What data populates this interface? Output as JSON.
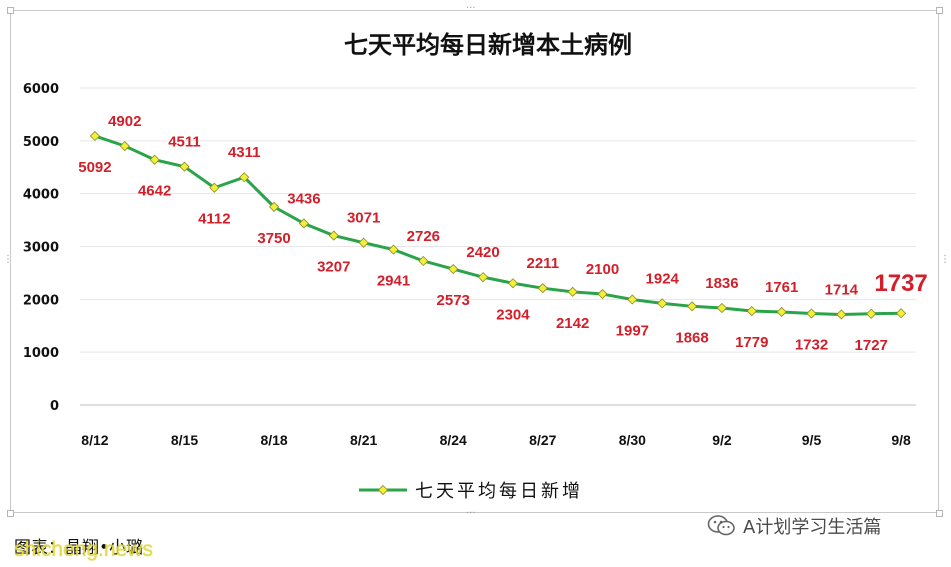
{
  "chart_data": {
    "type": "line",
    "title": "七天平均每日新增本土病例",
    "xlabel": "",
    "ylabel": "",
    "ylim": [
      0,
      6000
    ],
    "yticks": [
      0,
      1000,
      2000,
      3000,
      4000,
      5000,
      6000
    ],
    "grid": true,
    "legend_position": "bottom",
    "x": [
      "8/12",
      "8/13",
      "8/14",
      "8/15",
      "8/16",
      "8/17",
      "8/18",
      "8/19",
      "8/20",
      "8/21",
      "8/22",
      "8/23",
      "8/24",
      "8/25",
      "8/26",
      "8/27",
      "8/28",
      "8/29",
      "8/30",
      "8/31",
      "9/1",
      "9/2",
      "9/3",
      "9/4",
      "9/5",
      "9/6",
      "9/7",
      "9/8"
    ],
    "x_tick_labels": [
      "8/12",
      "8/15",
      "8/18",
      "8/21",
      "8/24",
      "8/27",
      "8/30",
      "9/2",
      "9/5",
      "9/8"
    ],
    "series": [
      {
        "name": "七天平均每日新增",
        "color": "#2aa34a",
        "marker_color": "#f2ef3c",
        "values": [
          5092,
          4902,
          4642,
          4511,
          4112,
          4311,
          3750,
          3436,
          3207,
          3071,
          2941,
          2726,
          2573,
          2420,
          2304,
          2211,
          2142,
          2100,
          1997,
          1924,
          1868,
          1836,
          1779,
          1761,
          1732,
          1714,
          1727,
          1737
        ]
      }
    ],
    "data_labels": [
      {
        "value": "5092",
        "pos": "below"
      },
      {
        "value": "4902",
        "pos": "above"
      },
      {
        "value": "4642",
        "pos": "below"
      },
      {
        "value": "4511",
        "pos": "above"
      },
      {
        "value": "4112",
        "pos": "below"
      },
      {
        "value": "4311",
        "pos": "above"
      },
      {
        "value": "3750",
        "pos": "below"
      },
      {
        "value": "3436",
        "pos": "above"
      },
      {
        "value": "3207",
        "pos": "below"
      },
      {
        "value": "3071",
        "pos": "above"
      },
      {
        "value": "2941",
        "pos": "below"
      },
      {
        "value": "2726",
        "pos": "above"
      },
      {
        "value": "2573",
        "pos": "below"
      },
      {
        "value": "2420",
        "pos": "above"
      },
      {
        "value": "2304",
        "pos": "below"
      },
      {
        "value": "2211",
        "pos": "above"
      },
      {
        "value": "2142",
        "pos": "below"
      },
      {
        "value": "2100",
        "pos": "above"
      },
      {
        "value": "1997",
        "pos": "below"
      },
      {
        "value": "1924",
        "pos": "above"
      },
      {
        "value": "1868",
        "pos": "below"
      },
      {
        "value": "1836",
        "pos": "above"
      },
      {
        "value": "1779",
        "pos": "below"
      },
      {
        "value": "1761",
        "pos": "above"
      },
      {
        "value": "1732",
        "pos": "below"
      },
      {
        "value": "1714",
        "pos": "above"
      },
      {
        "value": "1727",
        "pos": "below"
      },
      {
        "value": "1737",
        "pos": "above",
        "highlight": true
      }
    ],
    "label_color": "#d21f2a"
  },
  "caption": "图表：晶翔•小璐",
  "watermark_site": "shicheng.news",
  "channel": {
    "icon": "wechat-icon",
    "name": "A计划学习生活篇"
  }
}
